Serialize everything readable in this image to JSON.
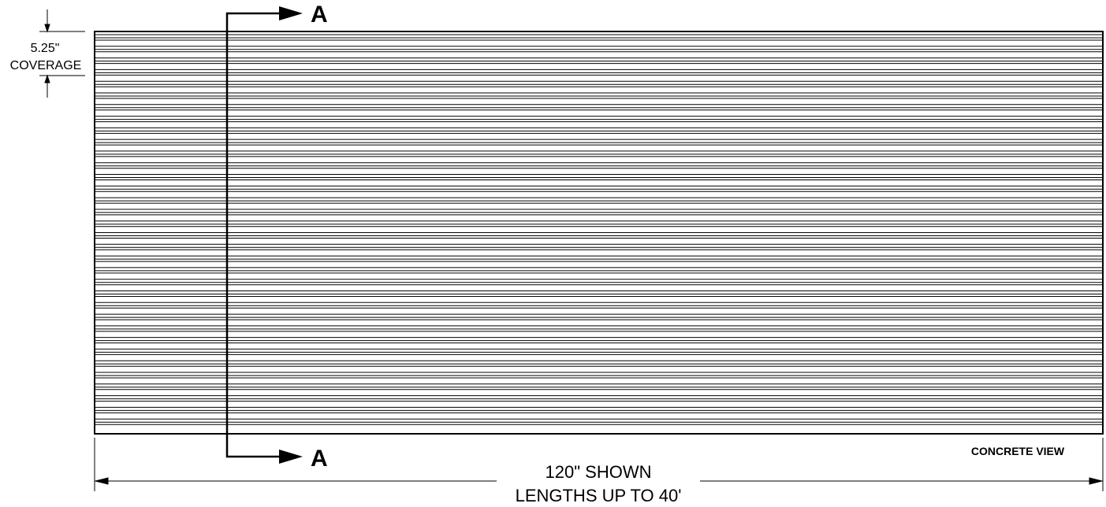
{
  "coverage": {
    "value": "5.25\"",
    "label": "COVERAGE"
  },
  "section_marker": {
    "top": "A",
    "bottom": "A"
  },
  "view_label": "CONCRETE VIEW",
  "length_dimension": {
    "shown": "120\" SHOWN",
    "lengths": "LENGTHS UP TO 40'"
  },
  "panel": {
    "rib_groups": 34,
    "lines_per_group": 3
  },
  "colors": {
    "line": "#000000",
    "background": "#ffffff"
  }
}
